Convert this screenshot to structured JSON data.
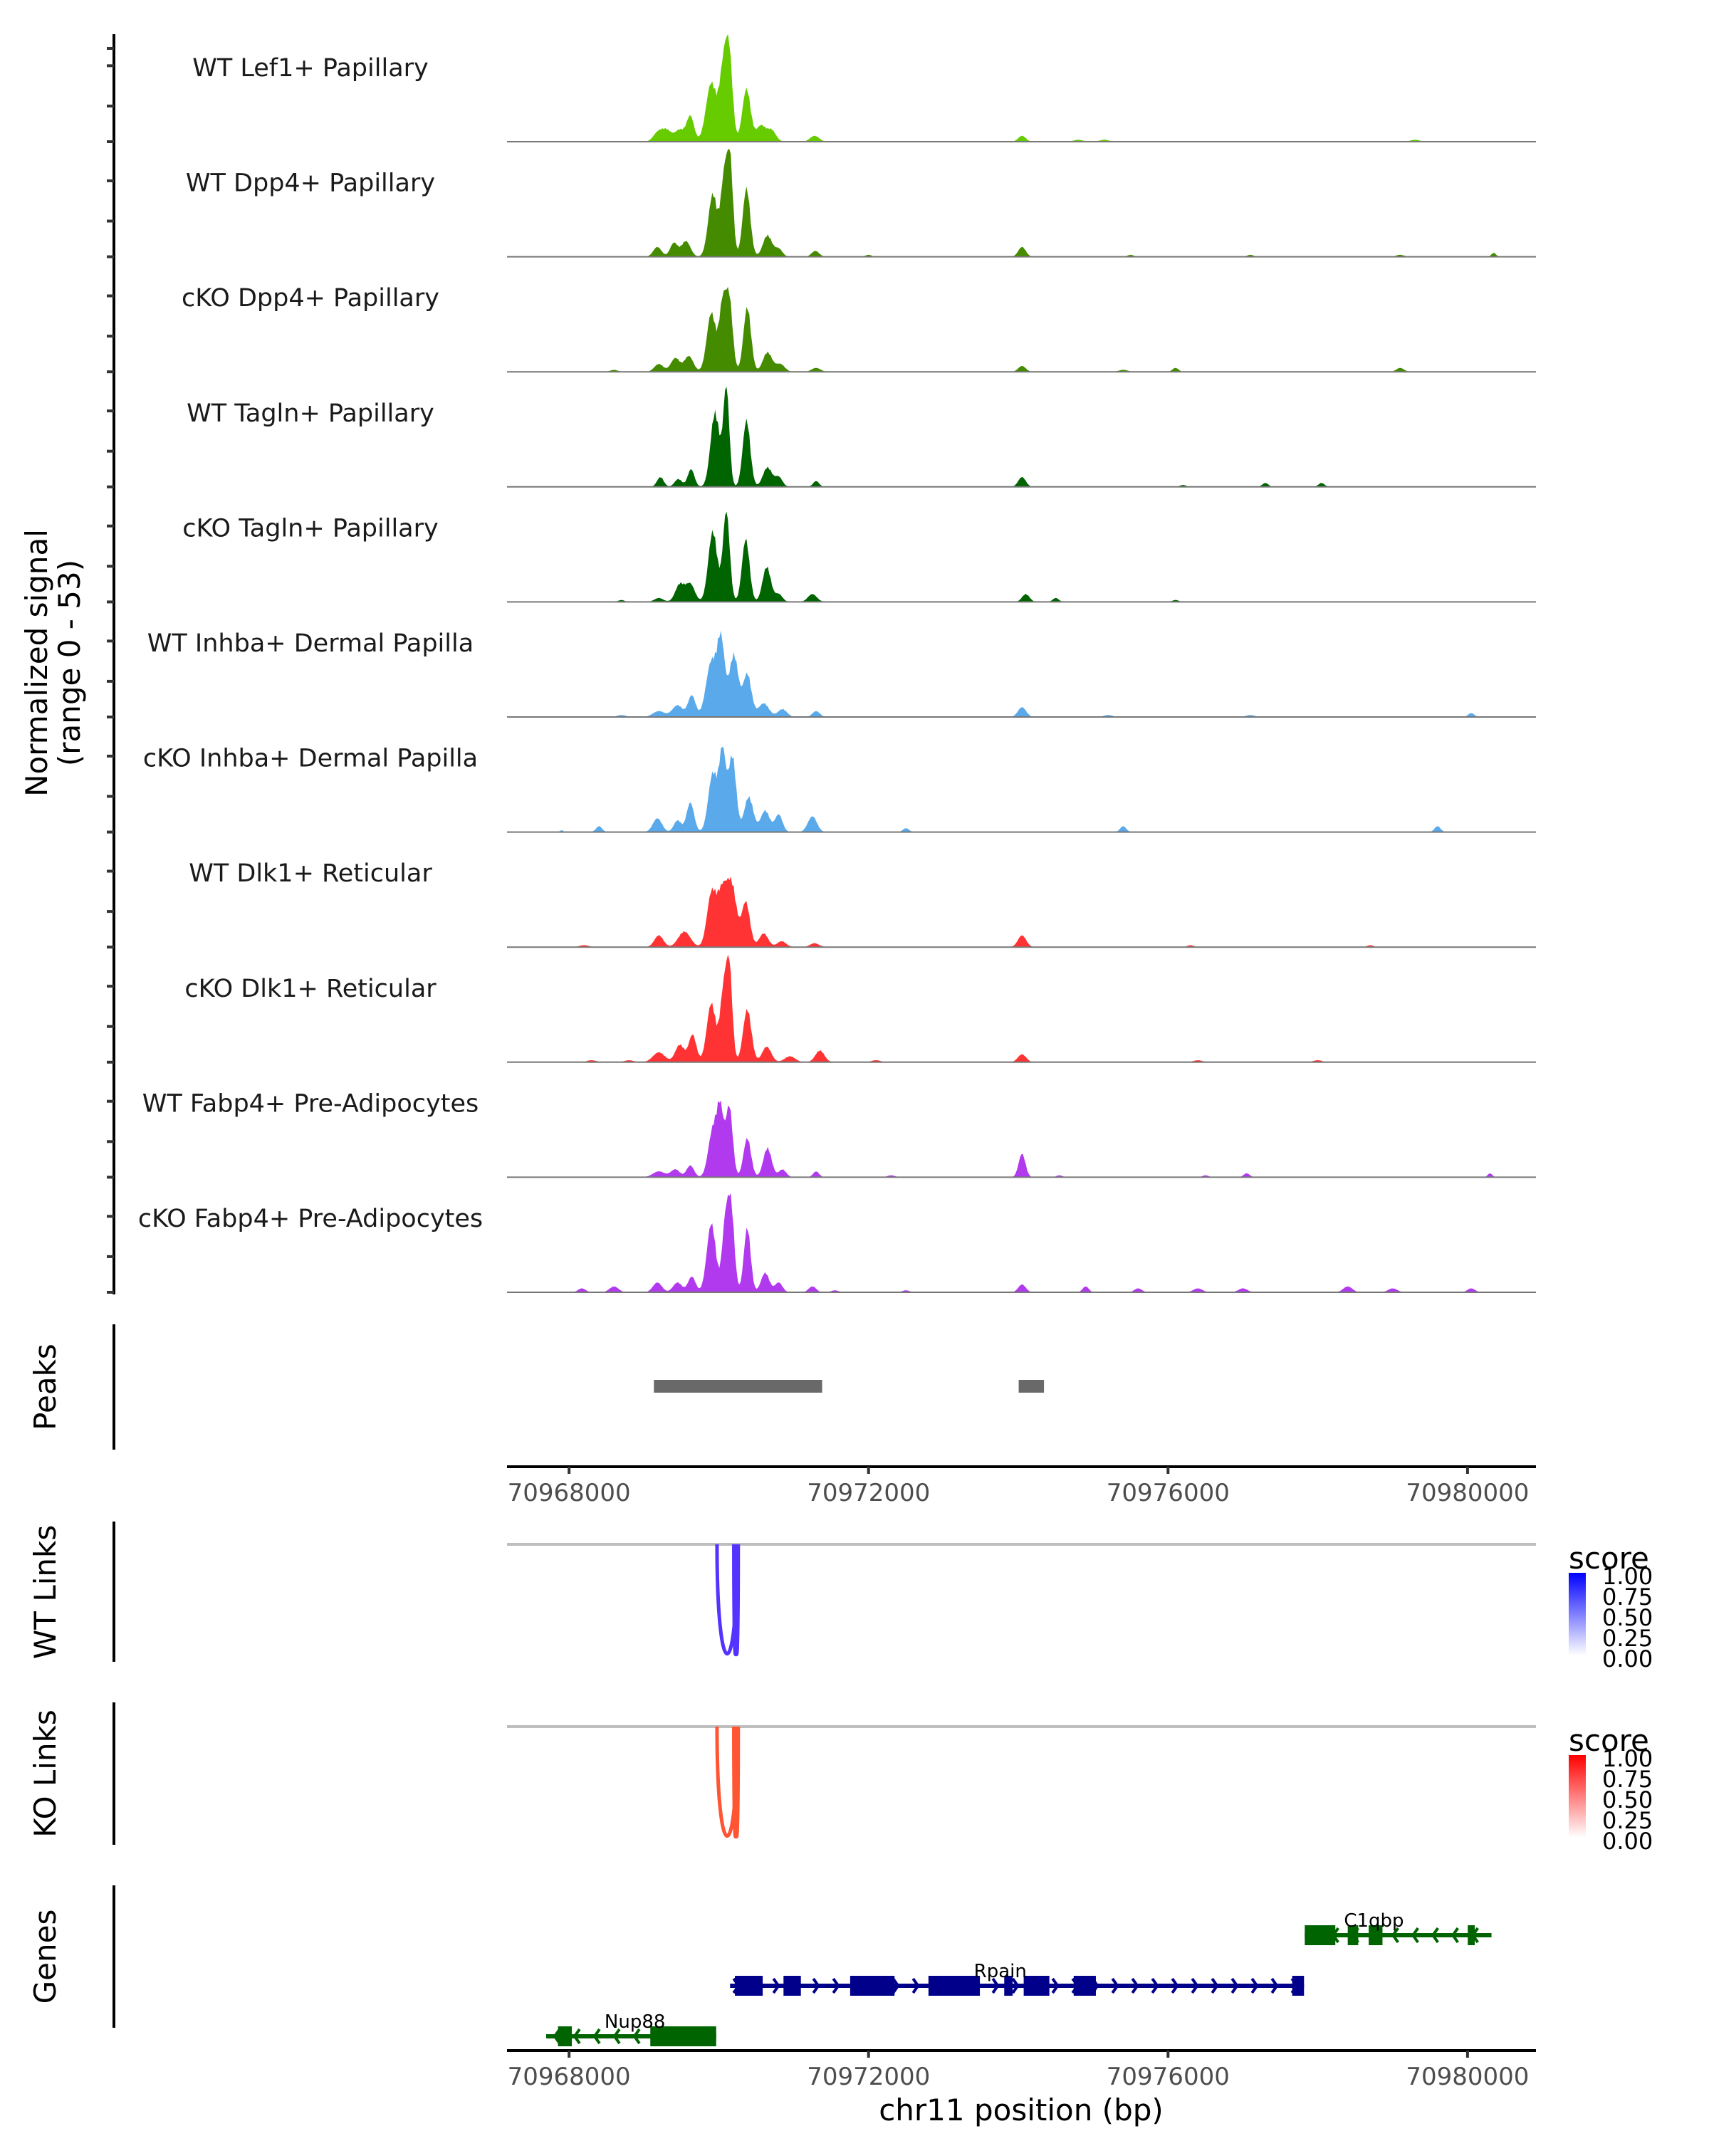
{
  "chart_data": {
    "type": "area",
    "title": "",
    "chromosome": "chr11",
    "xlabel": "chr11 position (bp)",
    "xlim": [
      70967171,
      70980914
    ],
    "xticks": [
      70968000,
      70972000,
      70976000,
      70980000
    ],
    "xtick_labels": [
      "70968000",
      "70972000",
      "70976000",
      "70980000"
    ],
    "coverage": {
      "ylabel_line1": "Normalized signal",
      "ylabel_line2": "(range 0 - 53)",
      "ylim": [
        0,
        53
      ],
      "tracks": [
        {
          "name": "WT Lef1+ Papillary",
          "color": "#66CC00",
          "peaks": [
            [
              69180,
              4,
              60
            ],
            [
              69300,
              6,
              70
            ],
            [
              69480,
              6,
              60
            ],
            [
              69620,
              13,
              50
            ],
            [
              69900,
              30,
              70
            ],
            [
              70060,
              35,
              50
            ],
            [
              70140,
              41,
              45
            ],
            [
              70370,
              27,
              55
            ],
            [
              70560,
              8,
              60
            ],
            [
              70700,
              6,
              60
            ],
            [
              71280,
              3,
              60
            ],
            [
              74050,
              3,
              50
            ],
            [
              74800,
              1,
              60
            ],
            [
              75150,
              1,
              60
            ],
            [
              79300,
              1,
              60
            ]
          ]
        },
        {
          "name": "WT Dpp4+ Papillary",
          "color": "#458B00",
          "peaks": [
            [
              69180,
              5,
              55
            ],
            [
              69400,
              7,
              50
            ],
            [
              69560,
              8,
              60
            ],
            [
              69920,
              32,
              60
            ],
            [
              70070,
              38,
              45
            ],
            [
              70150,
              47,
              40
            ],
            [
              70370,
              35,
              50
            ],
            [
              70650,
              11,
              60
            ],
            [
              70800,
              4,
              50
            ],
            [
              71290,
              3,
              50
            ],
            [
              72000,
              1,
              40
            ],
            [
              74050,
              5,
              50
            ],
            [
              75500,
              1,
              40
            ],
            [
              77100,
              1,
              40
            ],
            [
              79100,
              1,
              50
            ],
            [
              80350,
              2,
              30
            ]
          ]
        },
        {
          "name": "cKO Dpp4+ Papillary",
          "color": "#458B00",
          "peaks": [
            [
              68600,
              1,
              50
            ],
            [
              69200,
              4,
              60
            ],
            [
              69420,
              7,
              60
            ],
            [
              69600,
              8,
              60
            ],
            [
              69900,
              30,
              60
            ],
            [
              70050,
              33,
              45
            ],
            [
              70140,
              36,
              45
            ],
            [
              70380,
              33,
              50
            ],
            [
              70650,
              10,
              60
            ],
            [
              70820,
              4,
              60
            ],
            [
              71300,
              2,
              60
            ],
            [
              74050,
              3,
              50
            ],
            [
              75400,
              1,
              60
            ],
            [
              76100,
              2,
              40
            ],
            [
              79100,
              2,
              50
            ]
          ]
        },
        {
          "name": "WT Tagln+ Papillary",
          "color": "#006400",
          "peaks": [
            [
              69220,
              5,
              45
            ],
            [
              69460,
              4,
              50
            ],
            [
              69630,
              9,
              45
            ],
            [
              69950,
              38,
              60
            ],
            [
              70100,
              50,
              40
            ],
            [
              70370,
              34,
              50
            ],
            [
              70650,
              10,
              60
            ],
            [
              70800,
              5,
              50
            ],
            [
              71300,
              3,
              40
            ],
            [
              74050,
              5,
              50
            ],
            [
              76200,
              1,
              40
            ],
            [
              77300,
              2,
              40
            ],
            [
              78050,
              2,
              40
            ]
          ]
        },
        {
          "name": "cKO Tagln+ Papillary",
          "color": "#006400",
          "peaks": [
            [
              68700,
              1,
              40
            ],
            [
              69200,
              2,
              60
            ],
            [
              69480,
              9,
              60
            ],
            [
              69620,
              9,
              60
            ],
            [
              69920,
              36,
              60
            ],
            [
              70100,
              46,
              45
            ],
            [
              70360,
              32,
              50
            ],
            [
              70640,
              18,
              55
            ],
            [
              70800,
              4,
              50
            ],
            [
              71250,
              4,
              60
            ],
            [
              74100,
              4,
              50
            ],
            [
              74500,
              2,
              40
            ],
            [
              76100,
              1,
              40
            ]
          ]
        },
        {
          "name": "WT Inhba+ Dermal Papilla",
          "color": "#5AAAEB",
          "peaks": [
            [
              68700,
              1,
              60
            ],
            [
              69200,
              3,
              80
            ],
            [
              69450,
              6,
              70
            ],
            [
              69640,
              11,
              50
            ],
            [
              69900,
              28,
              70
            ],
            [
              70030,
              37,
              50
            ],
            [
              70200,
              32,
              60
            ],
            [
              70380,
              22,
              55
            ],
            [
              70600,
              7,
              70
            ],
            [
              70850,
              4,
              60
            ],
            [
              71300,
              3,
              50
            ],
            [
              74050,
              5,
              55
            ],
            [
              75200,
              1,
              60
            ],
            [
              77100,
              1,
              60
            ],
            [
              80050,
              2,
              40
            ]
          ]
        },
        {
          "name": "cKO Inhba+ Dermal Papilla",
          "color": "#5AAAEB",
          "peaks": [
            [
              67900,
              1,
              20
            ],
            [
              68400,
              3,
              40
            ],
            [
              69180,
              7,
              60
            ],
            [
              69450,
              6,
              50
            ],
            [
              69620,
              15,
              50
            ],
            [
              69920,
              30,
              60
            ],
            [
              70050,
              40,
              45
            ],
            [
              70180,
              39,
              50
            ],
            [
              70400,
              18,
              60
            ],
            [
              70620,
              11,
              60
            ],
            [
              70800,
              9,
              50
            ],
            [
              71250,
              8,
              60
            ],
            [
              72500,
              2,
              40
            ],
            [
              75400,
              3,
              40
            ],
            [
              79600,
              3,
              40
            ]
          ]
        },
        {
          "name": "WT Dlk1+ Reticular",
          "color": "#FF3333",
          "peaks": [
            [
              68200,
              1,
              60
            ],
            [
              69200,
              6,
              60
            ],
            [
              69540,
              8,
              80
            ],
            [
              69900,
              26,
              60
            ],
            [
              70050,
              29,
              70
            ],
            [
              70180,
              28,
              60
            ],
            [
              70360,
              23,
              55
            ],
            [
              70600,
              7,
              60
            ],
            [
              70840,
              3,
              60
            ],
            [
              71280,
              2,
              60
            ],
            [
              74050,
              6,
              55
            ],
            [
              76300,
              1,
              40
            ],
            [
              78700,
              1,
              40
            ]
          ]
        },
        {
          "name": "cKO Dlk1+ Reticular",
          "color": "#FF3333",
          "peaks": [
            [
              68300,
              1,
              60
            ],
            [
              68800,
              1,
              60
            ],
            [
              69200,
              5,
              80
            ],
            [
              69480,
              9,
              60
            ],
            [
              69650,
              14,
              50
            ],
            [
              69900,
              30,
              60
            ],
            [
              70060,
              34,
              45
            ],
            [
              70140,
              47,
              40
            ],
            [
              70380,
              27,
              55
            ],
            [
              70640,
              8,
              60
            ],
            [
              70950,
              3,
              70
            ],
            [
              71350,
              6,
              60
            ],
            [
              72100,
              1,
              60
            ],
            [
              74050,
              4,
              55
            ],
            [
              76400,
              1,
              60
            ],
            [
              78000,
              1,
              60
            ]
          ]
        },
        {
          "name": "WT Fabp4+ Pre-Adipocytes",
          "color": "#B23AEE",
          "peaks": [
            [
              69200,
              3,
              80
            ],
            [
              69420,
              4,
              60
            ],
            [
              69620,
              6,
              50
            ],
            [
              69920,
              24,
              60
            ],
            [
              70020,
              32,
              45
            ],
            [
              70140,
              36,
              45
            ],
            [
              70380,
              20,
              50
            ],
            [
              70650,
              15,
              55
            ],
            [
              70850,
              4,
              50
            ],
            [
              71300,
              3,
              40
            ],
            [
              72300,
              1,
              50
            ],
            [
              74050,
              12,
              45
            ],
            [
              74550,
              1,
              40
            ],
            [
              76500,
              1,
              40
            ],
            [
              77050,
              2,
              40
            ],
            [
              80300,
              2,
              30
            ]
          ]
        },
        {
          "name": "cKO Fabp4+ Pre-Adipocytes",
          "color": "#B23AEE",
          "peaks": [
            [
              68170,
              2,
              50
            ],
            [
              68600,
              3,
              60
            ],
            [
              69180,
              5,
              60
            ],
            [
              69450,
              5,
              60
            ],
            [
              69640,
              8,
              50
            ],
            [
              69900,
              35,
              60
            ],
            [
              70080,
              30,
              40
            ],
            [
              70160,
              45,
              45
            ],
            [
              70380,
              33,
              45
            ],
            [
              70620,
              10,
              55
            ],
            [
              70800,
              5,
              50
            ],
            [
              71250,
              3,
              50
            ],
            [
              71550,
              1,
              50
            ],
            [
              72500,
              1,
              50
            ],
            [
              74050,
              4,
              50
            ],
            [
              74900,
              3,
              40
            ],
            [
              75600,
              2,
              50
            ],
            [
              76400,
              2,
              60
            ],
            [
              77000,
              2,
              60
            ],
            [
              78400,
              3,
              60
            ],
            [
              79000,
              2,
              60
            ],
            [
              80050,
              2,
              50
            ]
          ]
        }
      ]
    },
    "peaks_track": {
      "label": "Peaks",
      "color": "#696969",
      "regions": [
        [
          70969133,
          70971380
        ],
        [
          70974005,
          70974343
        ]
      ]
    },
    "links": [
      {
        "label": "WT Links",
        "legend_title": "score",
        "color_low": "#FFFFFF",
        "color_high": "#0000FF",
        "line_color": "#5533FF",
        "links": [
          {
            "start": 70969976,
            "end": 70970247,
            "score": 0.7
          },
          {
            "start": 70970210,
            "end": 70970250,
            "score": 0.8
          }
        ],
        "legend_ticks": [
          "1.00",
          "0.75",
          "0.50",
          "0.25",
          "0.00"
        ]
      },
      {
        "label": "KO Links",
        "legend_title": "score",
        "color_low": "#FFFFFF",
        "color_high": "#FF0000",
        "line_color": "#FF5533",
        "links": [
          {
            "start": 70969976,
            "end": 70970247,
            "score": 0.7
          },
          {
            "start": 70970210,
            "end": 70970250,
            "score": 0.8
          }
        ],
        "legend_ticks": [
          "1.00",
          "0.75",
          "0.50",
          "0.25",
          "0.00"
        ]
      }
    ],
    "genes": {
      "label": "Genes",
      "items": [
        {
          "name": "C1qbp",
          "strand": "-",
          "color": "#006400",
          "row": 0,
          "start": 70977826,
          "end": 70980320,
          "exons": [
            [
              70977826,
              70978234
            ],
            [
              70978400,
              70978540
            ],
            [
              70978680,
              70978864
            ],
            [
              70980003,
              70980096
            ]
          ]
        },
        {
          "name": "Rpain",
          "strand": "+",
          "color": "#00008B",
          "row": 1,
          "start": 70970150,
          "end": 70977816,
          "exons": [
            [
              70970215,
              70970586
            ],
            [
              70970864,
              70971096
            ],
            [
              70971754,
              70972347
            ],
            [
              70972800,
              70973487
            ],
            [
              70973812,
              70973924
            ],
            [
              70974072,
              70974415
            ],
            [
              70974740,
              70975036
            ],
            [
              70977658,
              70977816
            ]
          ]
        },
        {
          "name": "Nup88",
          "strand": "-",
          "color": "#006400",
          "row": 2,
          "start": 70967694,
          "end": 70969965,
          "exons": [
            [
              70967852,
              70968037
            ],
            [
              70969085,
              70969965
            ]
          ]
        }
      ]
    }
  }
}
